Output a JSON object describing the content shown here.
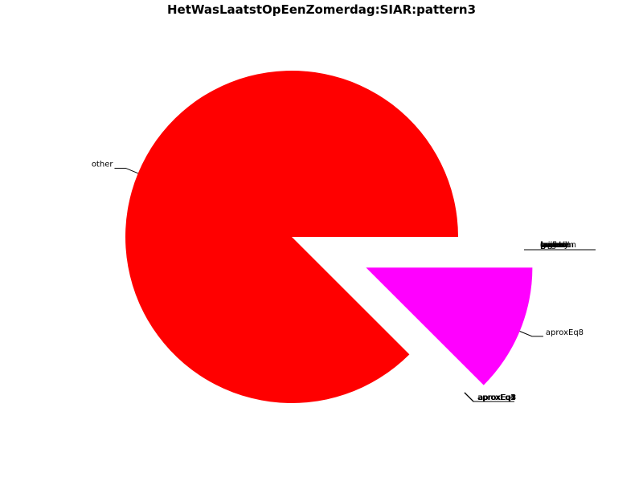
{
  "chart_data": {
    "type": "pie",
    "title": "HetWasLaatstOpEenZomerdag:SIAR:pattern3",
    "slices": [
      {
        "label": "other",
        "value": 87.5,
        "color": "#ff0000",
        "explode": false
      },
      {
        "label": "aproxEq8",
        "value": 12.5,
        "color": "#ff00ff",
        "explode": true
      }
    ],
    "clustered_labels": {
      "right_cluster": [
        "laplacian",
        "gamma",
        "bug",
        "poisson",
        "exp",
        "gauss",
        "unif",
        "lognorm",
        "weibull",
        "cauchy",
        "pareto",
        "trunc",
        "mixed"
      ],
      "bottom_cluster": [
        "aproxEq1",
        "aproxEq2",
        "aproxEq3",
        "aproxEq4",
        "aproxEq5"
      ]
    }
  }
}
